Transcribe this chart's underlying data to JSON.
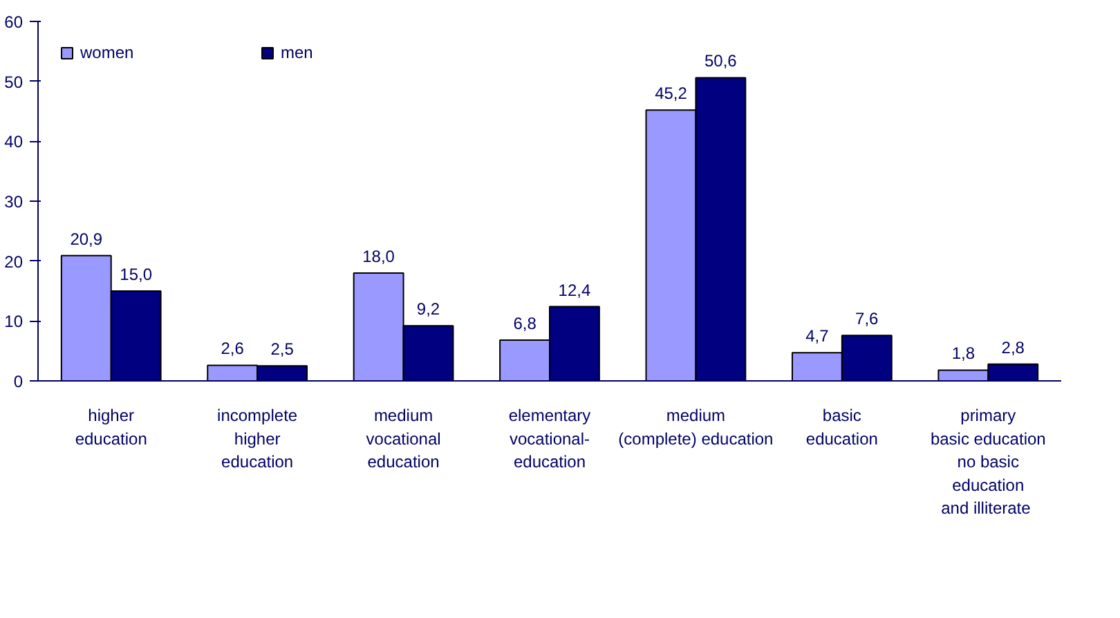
{
  "chart_data": {
    "type": "bar",
    "categories": [
      "higher\neducation",
      "incomplete\nhigher\neducation",
      "medium\nvocational\neducation",
      "elementary\nvocational-\neducation",
      "medium\n(complete) education",
      "basic\neducation",
      "primary\nbasic education\nno basic\neducation\nand  illiterate"
    ],
    "series": [
      {
        "name": "women",
        "color": "#9999ff",
        "values": [
          20.9,
          2.6,
          18.0,
          6.8,
          45.2,
          4.7,
          1.8
        ],
        "value_labels": [
          "20,9",
          "2,6",
          "18,0",
          "6,8",
          "45,2",
          "4,7",
          "1,8"
        ]
      },
      {
        "name": "men",
        "color": "#000080",
        "values": [
          15.0,
          2.5,
          9.2,
          12.4,
          50.6,
          7.6,
          2.8
        ],
        "value_labels": [
          "15,0",
          "2,5",
          "9,2",
          "12,4",
          "50,6",
          "7,6",
          "2,8"
        ]
      }
    ],
    "ylim": [
      0,
      60
    ],
    "yticks": [
      0,
      10,
      20,
      30,
      40,
      50,
      60
    ],
    "grid": false,
    "legend": "top left"
  }
}
